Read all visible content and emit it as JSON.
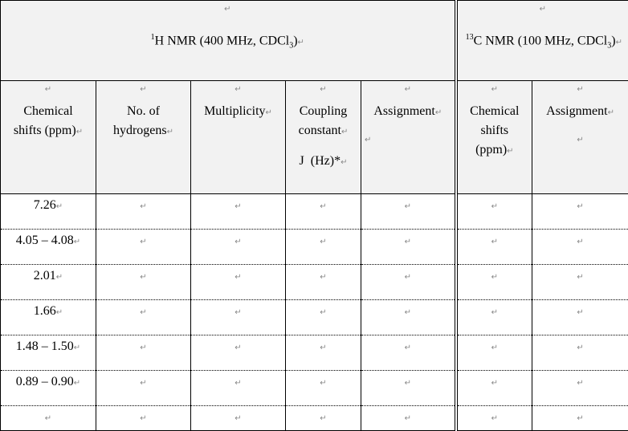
{
  "mark": "↵",
  "header": {
    "h_nmr": {
      "sup": "1",
      "text": "H NMR (400 MHz, CDCl",
      "sub": "3",
      "close": ")"
    },
    "c_nmr": {
      "sup": "13",
      "text": "C NMR (100 MHz, CDCl",
      "sub": "3",
      "close": ")"
    }
  },
  "columns": {
    "h_shift": [
      "Chemical",
      "shifts (ppm)"
    ],
    "h_count": [
      "No. of",
      "hydrogens"
    ],
    "multiplicity": "Multiplicity",
    "coupling": [
      "Coupling",
      "constant",
      "J  (Hz)*"
    ],
    "h_assignment": "Assignment",
    "c_shift": [
      "Chemical",
      "shifts",
      "(ppm)"
    ],
    "c_assignment": "Assignment"
  },
  "rows": [
    {
      "shift": "7.26"
    },
    {
      "shift": "4.05 – 4.08"
    },
    {
      "shift": "2.01"
    },
    {
      "shift": "1.66"
    },
    {
      "shift": "1.48 – 1.50"
    },
    {
      "shift": "0.89 – 0.90"
    },
    {
      "shift": ""
    }
  ]
}
